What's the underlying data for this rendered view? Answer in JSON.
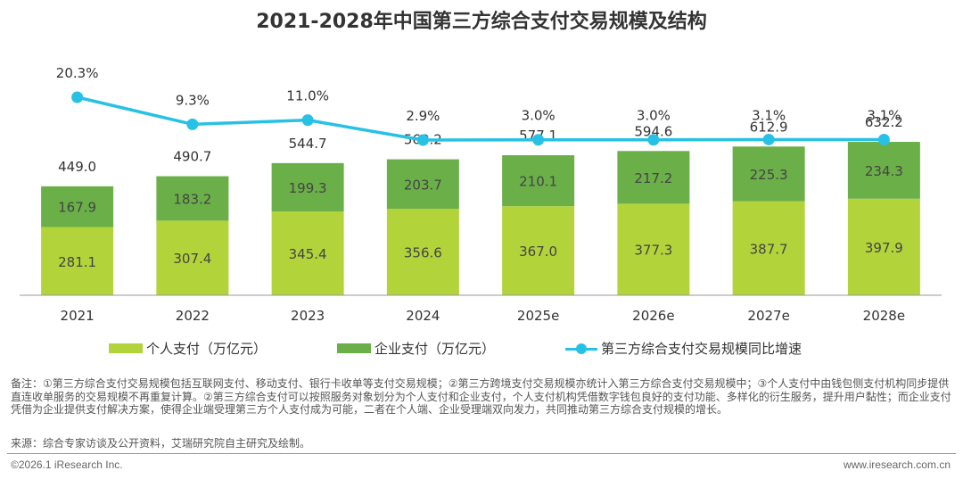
{
  "title": "2021-2028年中国第三方综合支付交易规模及结构",
  "colors": {
    "personal": "#b3d33b",
    "enterprise": "#6aaf48",
    "growth": "#27c1e6",
    "axis": "#999999",
    "text": "#333333",
    "bar_label": "#444444"
  },
  "chart_data": {
    "type": "bar",
    "stacked": true,
    "categories": [
      "2021",
      "2022",
      "2023",
      "2024",
      "2025e",
      "2026e",
      "2027e",
      "2028e"
    ],
    "series": [
      {
        "name": "个人支付（万亿元）",
        "values": [
          281.1,
          307.4,
          345.4,
          356.6,
          367.0,
          377.3,
          387.7,
          397.9
        ]
      },
      {
        "name": "企业支付（万亿元）",
        "values": [
          167.9,
          183.2,
          199.3,
          203.7,
          210.1,
          217.2,
          225.3,
          234.3
        ]
      }
    ],
    "totals": [
      "449.0",
      "490.7",
      "544.7",
      "560.2",
      "577.1",
      "594.6",
      "612.9",
      "632.2"
    ],
    "line": {
      "name": "第三方综合支付交易规模同比增速",
      "values": [
        20.3,
        9.3,
        11.0,
        2.9,
        3.0,
        3.0,
        3.1,
        3.1
      ],
      "labels": [
        "20.3%",
        "9.3%",
        "11.0%",
        "2.9%",
        "3.0%",
        "3.0%",
        "3.1%",
        "3.1%"
      ]
    },
    "grid": false,
    "legend_position": "bottom"
  },
  "legend": {
    "personal": "个人支付（万亿元）",
    "enterprise": "企业支付（万亿元）",
    "growth": "第三方综合支付交易规模同比增速"
  },
  "note": "备注：①第三方综合支付交易规模包括互联网支付、移动支付、银行卡收单等支付交易规模；②第三方跨境支付交易规模亦统计入第三方综合支付交易规模中；③个人支付中由钱包侧支付机构同步提供直连收单服务的交易规模不再重复计算。②第三方综合支付可以按照服务对象划分为个人支付和企业支付，个人支付机构凭借数字钱包良好的支付功能、多样化的衍生服务，提升用户黏性；而企业支付凭借为企业提供支付解决方案，使得企业端受理第三方个人支付成为可能，二者在个人端、企业受理端双向发力，共同推动第三方综合支付规模的增长。",
  "source": "来源：综合专家访谈及公开资料，艾瑞研究院自主研究及绘制。",
  "footer": {
    "copyright": "©2026.1 iResearch Inc.",
    "website": "www.iresearch.com.cn"
  }
}
